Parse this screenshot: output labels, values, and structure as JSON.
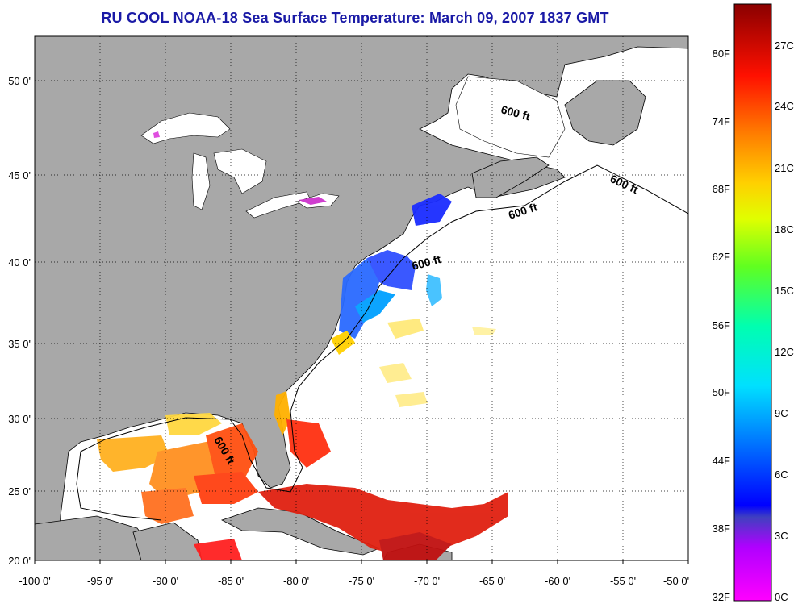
{
  "title": "RU COOL  NOAA-18  Sea Surface Temperature:  March 09, 2007 1837 GMT",
  "map": {
    "lon_range": [
      -100,
      -50
    ],
    "lat_range": [
      20,
      52
    ],
    "x_ticks": [
      "-100 0'",
      "-95 0'",
      "-90 0'",
      "-85 0'",
      "-80 0'",
      "-75 0'",
      "-70 0'",
      "-65 0'",
      "-60 0'",
      "-55 0'",
      "-50 0'"
    ],
    "y_ticks": [
      "50 0'",
      "45 0'",
      "40 0'",
      "35 0'",
      "30 0'",
      "25 0'",
      "20 0'"
    ],
    "contour_label": "600 ft",
    "land_color": "#a8a8a8",
    "ocean_color": "#ffffff",
    "grid": true
  },
  "colorbar": {
    "fahrenheit_labels": [
      "80F",
      "74F",
      "68F",
      "62F",
      "56F",
      "50F",
      "44F",
      "38F",
      "32F"
    ],
    "celsius_labels": [
      "27C",
      "24C",
      "21C",
      "18C",
      "15C",
      "12C",
      "9C",
      "6C",
      "3C",
      "0C"
    ],
    "colors": [
      "#ff00ff",
      "#8000ff",
      "#0000ff",
      "#0080ff",
      "#00ffff",
      "#00ff80",
      "#80ff00",
      "#ffff00",
      "#ffa000",
      "#ff4000",
      "#ff0000",
      "#900000"
    ]
  }
}
